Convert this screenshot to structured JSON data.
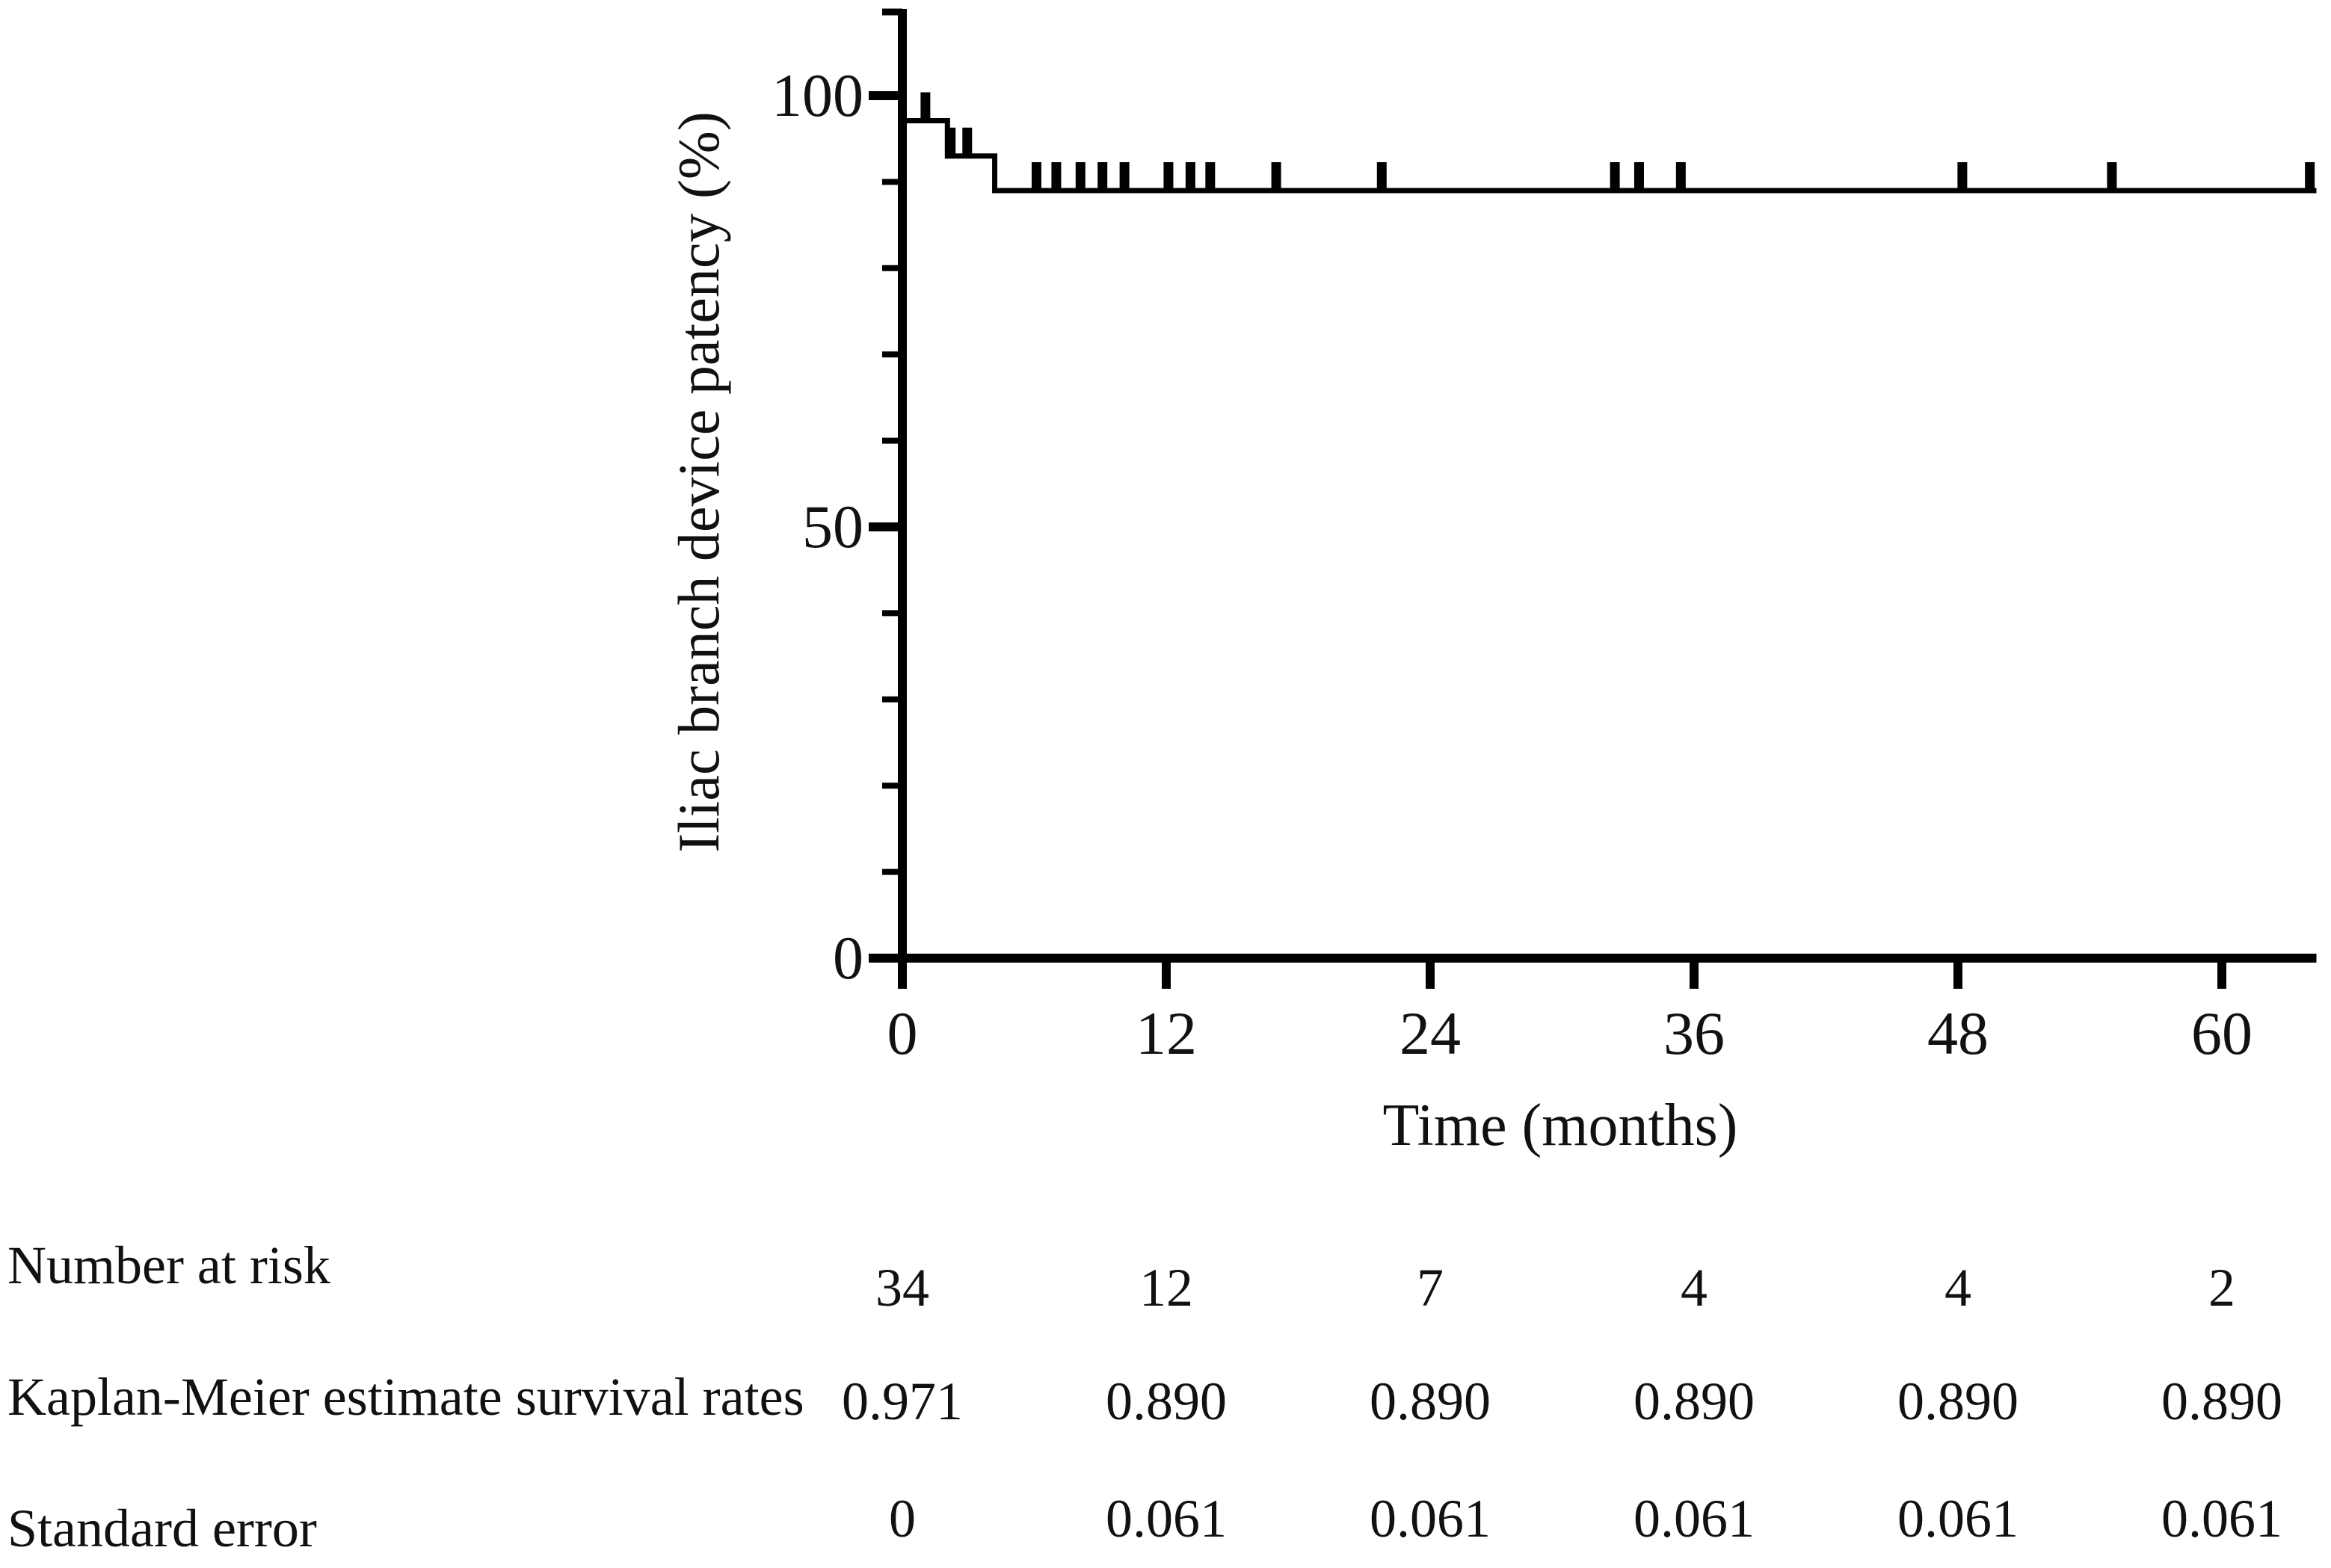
{
  "chart_data": {
    "type": "line",
    "subtype": "kaplan-meier-step",
    "title": "",
    "xlabel": "Time (months)",
    "ylabel": "Iliac branch device patency (%)",
    "x_tick_labels": [
      "0",
      "12",
      "24",
      "36",
      "48",
      "60"
    ],
    "x_tick_values": [
      0,
      12,
      24,
      36,
      48,
      60
    ],
    "y_tick_labels": [
      "100",
      "50",
      "0"
    ],
    "y_tick_values": [
      100,
      50,
      0
    ],
    "y_minor_tick_step": 10,
    "xlim": [
      0,
      64.3
    ],
    "ylim": [
      0,
      110
    ],
    "grid": false,
    "legend": "none",
    "line_color": "#000000",
    "series": [
      {
        "name": "Iliac branch device patency",
        "steps": [
          {
            "t_start": 0,
            "t_end": 2.05,
            "survival_pct": 97.1
          },
          {
            "t_start": 2.05,
            "t_end": 4.2,
            "survival_pct": 93.0
          },
          {
            "t_start": 4.2,
            "t_end": 64.3,
            "survival_pct": 89.0
          }
        ],
        "censor_marks": [
          {
            "t": 1.05,
            "survival_pct": 97.1
          },
          {
            "t": 2.2,
            "survival_pct": 93.0
          },
          {
            "t": 2.95,
            "survival_pct": 93.0
          },
          {
            "t": 6.1,
            "survival_pct": 89.0
          },
          {
            "t": 7.0,
            "survival_pct": 89.0
          },
          {
            "t": 8.1,
            "survival_pct": 89.0
          },
          {
            "t": 9.1,
            "survival_pct": 89.0
          },
          {
            "t": 10.1,
            "survival_pct": 89.0
          },
          {
            "t": 12.1,
            "survival_pct": 89.0
          },
          {
            "t": 13.1,
            "survival_pct": 89.0
          },
          {
            "t": 14.0,
            "survival_pct": 89.0
          },
          {
            "t": 17.0,
            "survival_pct": 89.0
          },
          {
            "t": 21.8,
            "survival_pct": 89.0
          },
          {
            "t": 32.4,
            "survival_pct": 89.0
          },
          {
            "t": 33.5,
            "survival_pct": 89.0
          },
          {
            "t": 35.4,
            "survival_pct": 89.0
          },
          {
            "t": 48.2,
            "survival_pct": 89.0
          },
          {
            "t": 55.0,
            "survival_pct": 89.0
          },
          {
            "t": 64.0,
            "survival_pct": 89.0
          }
        ]
      }
    ]
  },
  "axis_titles": {
    "x": "Time (months)",
    "y": "Iliac branch device patency (%)"
  },
  "risk_table": {
    "time_points": [
      0,
      12,
      24,
      36,
      48,
      60
    ],
    "rows": [
      {
        "label": "Number at risk",
        "values": [
          "34",
          "12",
          "7",
          "4",
          "4",
          "2"
        ]
      },
      {
        "label": "Kaplan-Meier estimate survival rates",
        "values": [
          "0.971",
          "0.890",
          "0.890",
          "0.890",
          "0.890",
          "0.890"
        ]
      },
      {
        "label": "Standard error",
        "values": [
          "0",
          "0.061",
          "0.061",
          "0.061",
          "0.061",
          "0.061"
        ]
      }
    ]
  }
}
